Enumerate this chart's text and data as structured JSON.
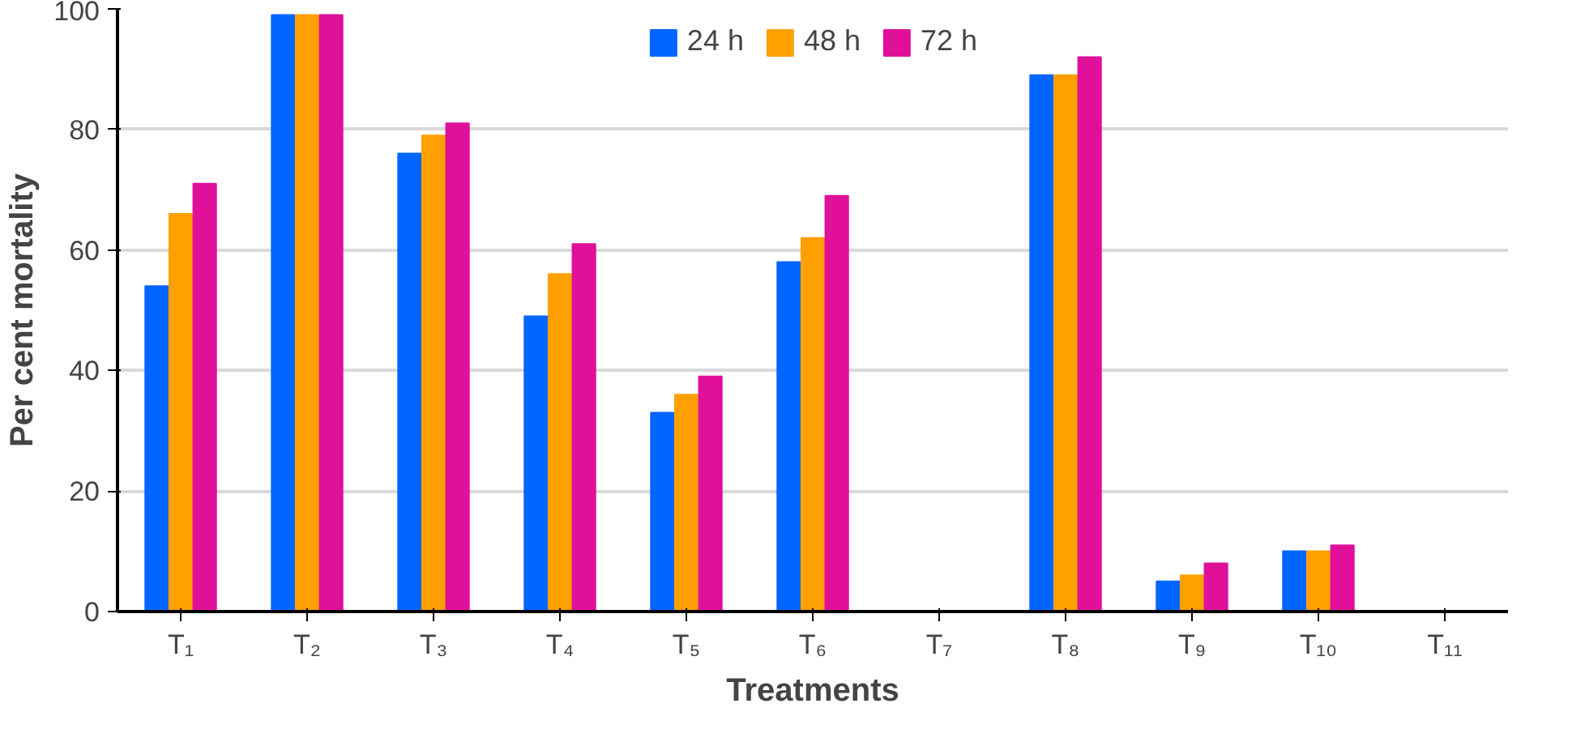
{
  "chart_data": {
    "type": "bar",
    "xlabel": "Treatments",
    "ylabel": "Per cent mortality",
    "categories": [
      "T₁",
      "T₂",
      "T₃",
      "T₄",
      "T₅",
      "T₆",
      "T₇",
      "T₈",
      "T₉",
      "T₁₀",
      "T₁₁"
    ],
    "series": [
      {
        "name": "24 h",
        "color": "#0066ff",
        "values": [
          54,
          99,
          76,
          49,
          33,
          58,
          0,
          89,
          5,
          10,
          0
        ]
      },
      {
        "name": "48 h",
        "color": "#ffa000",
        "values": [
          66,
          99,
          79,
          56,
          36,
          62,
          0,
          89,
          6,
          10,
          0
        ]
      },
      {
        "name": "72 h",
        "color": "#e0109a",
        "values": [
          71,
          99,
          81,
          61,
          39,
          69,
          0,
          92,
          8,
          11,
          0
        ]
      }
    ],
    "ylim": [
      0,
      100
    ],
    "yticks": [
      0,
      20,
      40,
      60,
      80,
      100
    ],
    "grid": "y",
    "legend": "top"
  }
}
